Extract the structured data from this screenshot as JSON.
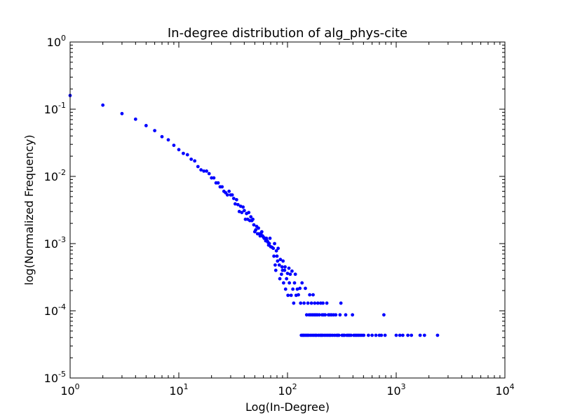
{
  "chart_data": {
    "type": "scatter",
    "title": "In-degree distribution of alg_phys-cite",
    "xlabel": "Log(In-Degree)",
    "ylabel": "log(Normalized Frequency)",
    "xscale": "log",
    "yscale": "log",
    "xlim": [
      1,
      10000
    ],
    "ylim": [
      1e-05,
      1
    ],
    "xticks": [
      {
        "base": "10",
        "exp": "0"
      },
      {
        "base": "10",
        "exp": "1"
      },
      {
        "base": "10",
        "exp": "2"
      },
      {
        "base": "10",
        "exp": "3"
      },
      {
        "base": "10",
        "exp": "4"
      }
    ],
    "yticks": [
      {
        "base": "10",
        "exp": "-5"
      },
      {
        "base": "10",
        "exp": "-4"
      },
      {
        "base": "10",
        "exp": "-3"
      },
      {
        "base": "10",
        "exp": "-2"
      },
      {
        "base": "10",
        "exp": "-1"
      },
      {
        "base": "10",
        "exp": "0"
      }
    ],
    "grid": false,
    "marker_color": "#0000ff",
    "points": [
      [
        1,
        0.16
      ],
      [
        2,
        0.115
      ],
      [
        3,
        0.086
      ],
      [
        4,
        0.071
      ],
      [
        5,
        0.057
      ],
      [
        6,
        0.048
      ],
      [
        7,
        0.039
      ],
      [
        8,
        0.035
      ],
      [
        9,
        0.029
      ],
      [
        10,
        0.025
      ],
      [
        11,
        0.022
      ],
      [
        12,
        0.021
      ],
      [
        13,
        0.018
      ],
      [
        14,
        0.017
      ],
      [
        15,
        0.014
      ],
      [
        16,
        0.0125
      ],
      [
        17,
        0.012
      ],
      [
        18,
        0.012
      ],
      [
        19,
        0.011
      ],
      [
        20,
        0.0095
      ],
      [
        21,
        0.0095
      ],
      [
        22,
        0.008
      ],
      [
        23,
        0.008
      ],
      [
        24,
        0.007
      ],
      [
        25,
        0.007
      ],
      [
        26,
        0.006
      ],
      [
        27,
        0.0057
      ],
      [
        28,
        0.0053
      ],
      [
        29,
        0.006
      ],
      [
        30,
        0.0053
      ],
      [
        31,
        0.0053
      ],
      [
        32,
        0.0047
      ],
      [
        33,
        0.0039
      ],
      [
        34,
        0.0045
      ],
      [
        35,
        0.0038
      ],
      [
        36,
        0.003
      ],
      [
        37,
        0.0036
      ],
      [
        38,
        0.0029
      ],
      [
        39,
        0.0035
      ],
      [
        40,
        0.0031
      ],
      [
        41,
        0.0023
      ],
      [
        42,
        0.0028
      ],
      [
        43,
        0.0023
      ],
      [
        44,
        0.0029
      ],
      [
        45,
        0.0022
      ],
      [
        46,
        0.0025
      ],
      [
        47,
        0.0022
      ],
      [
        48,
        0.0023
      ],
      [
        49,
        0.0019
      ],
      [
        50,
        0.0015
      ],
      [
        51,
        0.0016
      ],
      [
        52,
        0.0018
      ],
      [
        53,
        0.0014
      ],
      [
        54,
        0.0017
      ],
      [
        55,
        0.0014
      ],
      [
        56,
        0.0013
      ],
      [
        57,
        0.0014
      ],
      [
        58,
        0.0015
      ],
      [
        59,
        0.0013
      ],
      [
        60,
        0.00125
      ],
      [
        61,
        0.0012
      ],
      [
        62,
        0.0012
      ],
      [
        63,
        0.0011
      ],
      [
        64,
        0.0012
      ],
      [
        65,
        0.0011
      ],
      [
        66,
        0.00105
      ],
      [
        67,
        0.00095
      ],
      [
        68,
        0.001
      ],
      [
        69,
        0.0012
      ],
      [
        70,
        0.0009
      ],
      [
        72,
        0.00088
      ],
      [
        74,
        0.00085
      ],
      [
        75,
        0.00065
      ],
      [
        76,
        0.001
      ],
      [
        77,
        0.00048
      ],
      [
        78,
        0.0004
      ],
      [
        79,
        0.00078
      ],
      [
        80,
        0.00065
      ],
      [
        81,
        0.00055
      ],
      [
        82,
        0.00085
      ],
      [
        84,
        0.00048
      ],
      [
        85,
        0.0003
      ],
      [
        86,
        0.00058
      ],
      [
        88,
        0.00035
      ],
      [
        89,
        0.00045
      ],
      [
        90,
        0.0004
      ],
      [
        91,
        0.00055
      ],
      [
        92,
        0.00026
      ],
      [
        94,
        0.0004
      ],
      [
        95,
        0.00045
      ],
      [
        96,
        0.00021
      ],
      [
        98,
        0.0003
      ],
      [
        100,
        0.00036
      ],
      [
        101,
        0.00017
      ],
      [
        103,
        0.00043
      ],
      [
        104,
        0.00026
      ],
      [
        106,
        0.00035
      ],
      [
        108,
        0.00017
      ],
      [
        110,
        0.00039
      ],
      [
        112,
        0.00021
      ],
      [
        114,
        0.00013
      ],
      [
        116,
        0.00026
      ],
      [
        118,
        0.00035
      ],
      [
        120,
        0.00017
      ],
      [
        123,
        0.00021
      ],
      [
        126,
        0.000173
      ],
      [
        130,
        0.000216
      ],
      [
        132,
        0.00013
      ],
      [
        134,
        4.32e-05
      ],
      [
        136,
        0.00026
      ],
      [
        138,
        4.32e-05
      ],
      [
        140,
        4.32e-05
      ],
      [
        142,
        0.00013
      ],
      [
        144,
        4.32e-05
      ],
      [
        146,
        0.000216
      ],
      [
        148,
        4.32e-05
      ],
      [
        150,
        8.7e-05
      ],
      [
        152,
        4.32e-05
      ],
      [
        154,
        0.00013
      ],
      [
        156,
        4.32e-05
      ],
      [
        158,
        8.7e-05
      ],
      [
        160,
        0.000173
      ],
      [
        162,
        4.32e-05
      ],
      [
        164,
        8.7e-05
      ],
      [
        166,
        0.00013
      ],
      [
        168,
        4.32e-05
      ],
      [
        170,
        8.7e-05
      ],
      [
        172,
        0.000173
      ],
      [
        174,
        4.32e-05
      ],
      [
        176,
        8.7e-05
      ],
      [
        178,
        0.00013
      ],
      [
        180,
        4.32e-05
      ],
      [
        182,
        8.7e-05
      ],
      [
        185,
        4.32e-05
      ],
      [
        188,
        8.7e-05
      ],
      [
        190,
        0.00013
      ],
      [
        193,
        4.32e-05
      ],
      [
        196,
        8.7e-05
      ],
      [
        200,
        4.32e-05
      ],
      [
        202,
        0.00013
      ],
      [
        205,
        4.32e-05
      ],
      [
        208,
        8.7e-05
      ],
      [
        210,
        4.32e-05
      ],
      [
        212,
        0.00013
      ],
      [
        215,
        8.7e-05
      ],
      [
        218,
        4.32e-05
      ],
      [
        222,
        8.7e-05
      ],
      [
        226,
        4.32e-05
      ],
      [
        230,
        0.00013
      ],
      [
        234,
        4.32e-05
      ],
      [
        238,
        8.7e-05
      ],
      [
        242,
        4.32e-05
      ],
      [
        246,
        8.7e-05
      ],
      [
        250,
        4.32e-05
      ],
      [
        255,
        8.7e-05
      ],
      [
        260,
        4.32e-05
      ],
      [
        266,
        8.7e-05
      ],
      [
        272,
        4.32e-05
      ],
      [
        278,
        8.7e-05
      ],
      [
        284,
        4.32e-05
      ],
      [
        290,
        4.32e-05
      ],
      [
        297,
        4.32e-05
      ],
      [
        304,
        8.7e-05
      ],
      [
        310,
        0.00013
      ],
      [
        318,
        4.32e-05
      ],
      [
        326,
        4.32e-05
      ],
      [
        334,
        4.32e-05
      ],
      [
        343,
        8.7e-05
      ],
      [
        352,
        4.32e-05
      ],
      [
        362,
        4.32e-05
      ],
      [
        372,
        4.32e-05
      ],
      [
        384,
        4.32e-05
      ],
      [
        396,
        8.7e-05
      ],
      [
        408,
        4.32e-05
      ],
      [
        421,
        4.32e-05
      ],
      [
        435,
        4.32e-05
      ],
      [
        450,
        4.32e-05
      ],
      [
        466,
        4.32e-05
      ],
      [
        484,
        4.32e-05
      ],
      [
        503,
        4.32e-05
      ],
      [
        555,
        4.32e-05
      ],
      [
        600,
        4.32e-05
      ],
      [
        650,
        4.32e-05
      ],
      [
        700,
        4.32e-05
      ],
      [
        730,
        4.32e-05
      ],
      [
        770,
        8.7e-05
      ],
      [
        790,
        4.32e-05
      ],
      [
        1000,
        4.32e-05
      ],
      [
        1080,
        4.32e-05
      ],
      [
        1150,
        4.32e-05
      ],
      [
        1280,
        4.32e-05
      ],
      [
        1380,
        4.32e-05
      ],
      [
        1660,
        4.32e-05
      ],
      [
        1820,
        4.32e-05
      ],
      [
        2400,
        4.32e-05
      ]
    ]
  }
}
